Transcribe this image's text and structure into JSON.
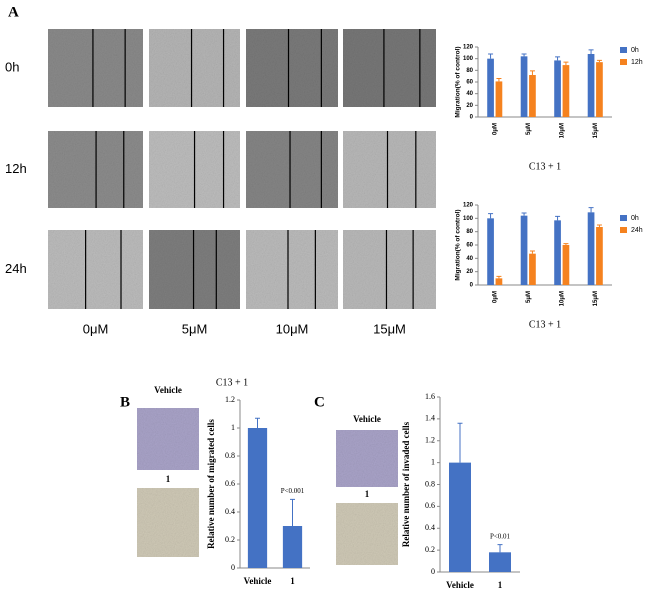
{
  "panel_labels": [
    "A",
    "B",
    "C"
  ],
  "wound_assay": {
    "times": [
      "0h",
      "12h",
      "24h"
    ],
    "doses": [
      "0μM",
      "5μM",
      "10μM",
      "15μM"
    ],
    "caption": "C13 + 1"
  },
  "transwell": [
    {
      "image_labels": [
        "Vehicle",
        "1"
      ]
    },
    {
      "image_labels": [
        "Vehicle",
        "1"
      ]
    }
  ],
  "chart_data": [
    {
      "type": "bar",
      "ylabel": "Migration(% of control)",
      "xlabel": "C13 + 1",
      "categories": [
        "0μM",
        "5μM",
        "10μM",
        "15μM"
      ],
      "series": [
        {
          "name": "0h",
          "color": "#4472c4",
          "values": [
            100,
            104,
            97,
            108
          ],
          "errors": [
            8,
            4,
            6,
            7
          ]
        },
        {
          "name": "12h",
          "color": "#f5821f",
          "values": [
            61,
            72,
            89,
            94
          ],
          "errors": [
            5,
            7,
            5,
            3
          ]
        }
      ],
      "ylim": [
        0,
        120
      ],
      "yticks": [
        0,
        20,
        40,
        60,
        80,
        100,
        120
      ],
      "legend": "right"
    },
    {
      "type": "bar",
      "ylabel": "Migration(% of control)",
      "xlabel": "C13 + 1",
      "categories": [
        "0μM",
        "5μM",
        "10μM",
        "15μM"
      ],
      "series": [
        {
          "name": "0h",
          "color": "#4472c4",
          "values": [
            100,
            104,
            97,
            109
          ],
          "errors": [
            7,
            4,
            6,
            7
          ]
        },
        {
          "name": "24h",
          "color": "#f5821f",
          "values": [
            10,
            47,
            60,
            87
          ],
          "errors": [
            3,
            4,
            2,
            3
          ]
        }
      ],
      "ylim": [
        0,
        120
      ],
      "yticks": [
        0,
        20,
        40,
        60,
        80,
        100,
        120
      ],
      "legend": "right"
    },
    {
      "type": "bar",
      "ylabel": "Relative number of migrated cells",
      "annotation": "P<0.001",
      "categories": [
        "Vehicle",
        "1"
      ],
      "values": [
        1,
        0.3
      ],
      "errors": [
        0.07,
        0.19
      ],
      "color": "#4472c4",
      "ylim": [
        0,
        1.2
      ],
      "yticks": [
        0,
        0.2,
        0.4,
        0.6,
        0.8,
        1,
        1.2
      ]
    },
    {
      "type": "bar",
      "ylabel": "Relative number of invaded cells",
      "annotation": "P<0.01",
      "categories": [
        "Vehicle",
        "1"
      ],
      "values": [
        1,
        0.18
      ],
      "errors": [
        0.36,
        0.07
      ],
      "color": "#4472c4",
      "ylim": [
        0,
        1.6
      ],
      "yticks": [
        0,
        0.2,
        0.4,
        0.6,
        0.8,
        1,
        1.2,
        1.4,
        1.6
      ]
    }
  ]
}
